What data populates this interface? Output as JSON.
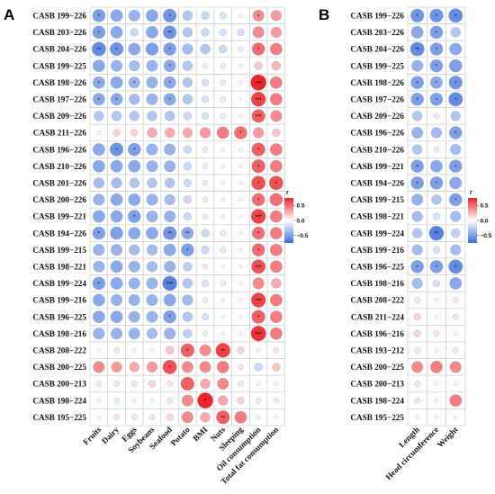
{
  "chart_data": [
    {
      "type": "heatmap",
      "panel": "A",
      "rows": [
        "CASB 199−226",
        "CASB 203−226",
        "CASB 204−226",
        "CASB 199−225",
        "CASB 198−226",
        "CASB 197−226",
        "CASB 209−226",
        "CASB 211−226",
        "CASB 196−226",
        "CASB 210−226",
        "CASB 201−226",
        "CASB 200−226",
        "CASB 199−221",
        "CASB 194−226",
        "CASB 199−215",
        "CASB 198−221",
        "CASB 199−224",
        "CASB 199−216",
        "CASB 196−225",
        "CASB 198−216",
        "CASB 208−222",
        "CASB 200−225",
        "CASB 200−213",
        "CASB 198−224",
        "CASB 195−225"
      ],
      "columns": [
        "Fruits",
        "Dairy",
        "Eggs",
        "Soybeans",
        "Seafood",
        "Potato",
        "BMI",
        "Nuts",
        "Sleeping",
        "Oil consumption",
        "Total fat consumption"
      ],
      "values": [
        [
          -0.5,
          -0.45,
          -0.4,
          -0.45,
          -0.55,
          -0.3,
          -0.2,
          -0.15,
          0.05,
          0.4,
          0.35
        ],
        [
          -0.5,
          -0.45,
          -0.2,
          -0.45,
          -0.55,
          -0.3,
          -0.2,
          -0.15,
          -0.15,
          0.4,
          0.35
        ],
        [
          -0.6,
          -0.55,
          -0.45,
          -0.5,
          -0.5,
          -0.35,
          -0.3,
          -0.2,
          -0.1,
          0.5,
          0.45
        ],
        [
          -0.45,
          -0.4,
          -0.35,
          -0.4,
          -0.45,
          -0.3,
          -0.1,
          -0.1,
          0.05,
          0.2,
          0.25
        ],
        [
          -0.45,
          -0.45,
          -0.4,
          -0.4,
          -0.45,
          -0.3,
          -0.15,
          -0.1,
          0.05,
          0.75,
          0.45
        ],
        [
          -0.45,
          -0.45,
          -0.35,
          -0.4,
          -0.45,
          -0.3,
          -0.15,
          -0.1,
          -0.02,
          0.65,
          0.45
        ],
        [
          -0.3,
          -0.3,
          -0.3,
          -0.3,
          -0.3,
          -0.2,
          -0.15,
          -0.1,
          -0.05,
          0.55,
          0.4
        ],
        [
          0.05,
          0.15,
          0.15,
          0.3,
          0.3,
          0.3,
          0.35,
          0.45,
          0.5,
          0.35,
          0.2
        ],
        [
          -0.45,
          -0.55,
          -0.5,
          -0.4,
          -0.4,
          -0.2,
          -0.1,
          -0.05,
          -0.05,
          0.55,
          0.45
        ],
        [
          -0.45,
          -0.45,
          -0.45,
          -0.4,
          -0.4,
          -0.2,
          -0.1,
          -0.05,
          -0.05,
          0.55,
          0.45
        ],
        [
          -0.35,
          -0.35,
          -0.3,
          -0.3,
          -0.3,
          -0.2,
          -0.1,
          -0.05,
          -0.05,
          0.6,
          0.6
        ],
        [
          -0.4,
          -0.45,
          -0.45,
          -0.4,
          -0.35,
          -0.2,
          -0.1,
          -0.05,
          -0.05,
          0.5,
          0.5
        ],
        [
          -0.45,
          -0.45,
          -0.5,
          -0.4,
          -0.4,
          -0.2,
          -0.1,
          -0.05,
          -0.02,
          0.65,
          0.45
        ],
        [
          -0.5,
          -0.5,
          -0.45,
          -0.45,
          -0.55,
          -0.45,
          -0.2,
          -0.1,
          -0.05,
          0.5,
          0.45
        ],
        [
          -0.4,
          -0.4,
          -0.35,
          -0.35,
          -0.45,
          -0.5,
          -0.2,
          -0.1,
          -0.05,
          0.5,
          0.45
        ],
        [
          -0.4,
          -0.45,
          -0.4,
          -0.35,
          -0.4,
          -0.25,
          -0.1,
          -0.05,
          -0.05,
          0.6,
          0.45
        ],
        [
          -0.5,
          -0.45,
          -0.4,
          -0.4,
          -0.65,
          -0.3,
          -0.15,
          -0.1,
          -0.05,
          0.4,
          0.3
        ],
        [
          -0.45,
          -0.4,
          -0.4,
          -0.4,
          -0.45,
          -0.35,
          -0.1,
          -0.05,
          -0.05,
          0.65,
          0.45
        ],
        [
          -0.45,
          -0.45,
          -0.4,
          -0.4,
          -0.5,
          -0.3,
          -0.15,
          -0.05,
          -0.05,
          0.55,
          0.45
        ],
        [
          -0.4,
          -0.4,
          -0.4,
          -0.35,
          -0.4,
          -0.25,
          -0.1,
          -0.05,
          -0.05,
          0.7,
          0.45
        ],
        [
          -0.05,
          -0.1,
          -0.05,
          0.05,
          0.2,
          0.55,
          0.4,
          0.65,
          0.15,
          -0.05,
          0.1
        ],
        [
          0.4,
          0.35,
          0.3,
          0.35,
          0.6,
          0.4,
          0.4,
          0.45,
          0.1,
          -0.2,
          0.2
        ],
        [
          -0.1,
          0.1,
          0.1,
          0.15,
          0.1,
          0.55,
          0.3,
          0.4,
          0.1,
          -0.05,
          0.05
        ],
        [
          0.05,
          -0.1,
          -0.05,
          0.05,
          0.1,
          0.4,
          0.75,
          0.3,
          0.15,
          -0.1,
          -0.1
        ],
        [
          0.05,
          0.1,
          0.1,
          0.1,
          0.15,
          0.4,
          0.3,
          0.55,
          0.45,
          0.05,
          0.05
        ]
      ],
      "significance": [
        [
          "*",
          "",
          "",
          "",
          "*",
          "",
          "",
          "",
          "",
          "*",
          ""
        ],
        [
          "*",
          "",
          "",
          "",
          "**",
          "",
          "",
          "",
          "",
          "",
          ""
        ],
        [
          "**",
          "*",
          "",
          "",
          "*",
          "",
          "",
          "",
          "",
          "*",
          ""
        ],
        [
          "",
          "",
          "",
          "",
          "*",
          "",
          "",
          "",
          "",
          "",
          ""
        ],
        [
          "*",
          "",
          "*",
          "",
          "*",
          "",
          "",
          "",
          "",
          "***",
          ""
        ],
        [
          "*",
          "*",
          "",
          "",
          "*",
          "",
          "",
          "",
          "",
          "***",
          ""
        ],
        [
          "",
          "",
          "",
          "",
          "",
          "",
          "",
          "",
          "",
          "***",
          ""
        ],
        [
          "",
          "",
          "",
          "",
          "",
          "",
          "",
          "",
          "*",
          "",
          ""
        ],
        [
          "",
          "*",
          "*",
          "",
          "",
          "",
          "",
          "",
          "",
          "*",
          ""
        ],
        [
          "",
          "",
          "",
          "",
          "",
          "",
          "",
          "",
          "",
          "*",
          ""
        ],
        [
          "",
          "",
          "",
          "",
          "",
          "",
          "",
          "",
          "",
          "*",
          "*"
        ],
        [
          "",
          "",
          "",
          "",
          "",
          "",
          "",
          "",
          "",
          "*",
          ""
        ],
        [
          "",
          "",
          "*",
          "",
          "",
          "",
          "",
          "",
          "",
          "***",
          ""
        ],
        [
          "*",
          "",
          "",
          "",
          "**",
          "**",
          "",
          "",
          "",
          "*",
          ""
        ],
        [
          "",
          "",
          "",
          "",
          "",
          "*",
          "",
          "",
          "",
          "*",
          ""
        ],
        [
          "",
          "",
          "",
          "",
          "",
          "",
          "",
          "",
          "",
          "***",
          ""
        ],
        [
          "*",
          "",
          "",
          "",
          "***",
          "",
          "",
          "",
          "",
          "",
          ""
        ],
        [
          "",
          "",
          "",
          "",
          "",
          "",
          "",
          "",
          "",
          "***",
          ""
        ],
        [
          "",
          "",
          "",
          "",
          "*",
          "",
          "",
          "",
          "",
          "*",
          ""
        ],
        [
          "",
          "",
          "",
          "",
          "",
          "",
          "",
          "",
          "",
          "***",
          ""
        ],
        [
          "",
          "",
          "",
          "",
          "",
          "*",
          "",
          "**",
          "",
          "",
          ""
        ],
        [
          "",
          "",
          "",
          "",
          "*",
          "",
          "",
          "",
          "",
          "",
          ""
        ],
        [
          "",
          "",
          "",
          "",
          "",
          "",
          "",
          "",
          "",
          "",
          ""
        ],
        [
          "",
          "",
          "",
          "",
          "",
          "",
          "*",
          "",
          "",
          "",
          ""
        ],
        [
          "",
          "",
          "",
          "",
          "",
          "",
          "",
          "**",
          "",
          "",
          ""
        ]
      ],
      "colorbar": {
        "title": "r",
        "ticks": [
          "0.5",
          "0.0",
          "−0.5"
        ],
        "range": [
          -0.75,
          0.75
        ]
      }
    },
    {
      "type": "heatmap",
      "panel": "B",
      "rows": [
        "CASB 199−226",
        "CASB 203−226",
        "CASB 204−226",
        "CASB 199−225",
        "CASB 198−226",
        "CASB 197−226",
        "CASB 209−226",
        "CASB 196−226",
        "CASB 210−226",
        "CASB 199−221",
        "CASB 194−226",
        "CASB 199−215",
        "CASB 198−221",
        "CASB 199−224",
        "CASB 199−216",
        "CASB 196−225",
        "CASB 198−216",
        "CASB 208−222",
        "CASB 211−224",
        "CASB 196−216",
        "CASB 193−212",
        "CASB 200−225",
        "CASB 200−213",
        "CASB 198−224",
        "CASB 195−225"
      ],
      "columns": [
        "Length",
        "Head circumference",
        "Weight"
      ],
      "values": [
        [
          -0.55,
          -0.55,
          -0.6
        ],
        [
          -0.45,
          -0.5,
          -0.3
        ],
        [
          -0.6,
          -0.5,
          -0.45
        ],
        [
          -0.4,
          -0.5,
          -0.5
        ],
        [
          -0.5,
          -0.45,
          -0.55
        ],
        [
          -0.5,
          -0.5,
          -0.6
        ],
        [
          -0.3,
          -0.1,
          -0.3
        ],
        [
          -0.4,
          -0.35,
          -0.5
        ],
        [
          -0.3,
          -0.1,
          -0.35
        ],
        [
          -0.5,
          -0.45,
          -0.5
        ],
        [
          -0.5,
          -0.5,
          -0.45
        ],
        [
          -0.4,
          -0.3,
          -0.5
        ],
        [
          -0.35,
          -0.15,
          -0.35
        ],
        [
          -0.3,
          -0.65,
          -0.25
        ],
        [
          -0.35,
          -0.15,
          -0.35
        ],
        [
          -0.5,
          -0.5,
          -0.6
        ],
        [
          -0.35,
          -0.15,
          -0.45
        ],
        [
          0.1,
          0.05,
          0.1
        ],
        [
          0.15,
          0.05,
          0.1
        ],
        [
          0.15,
          0.1,
          0.05
        ],
        [
          0.1,
          0.05,
          0.1
        ],
        [
          0.4,
          0.45,
          0.4
        ],
        [
          0.1,
          0.05,
          0.05
        ],
        [
          0.1,
          0.05,
          0.45
        ],
        [
          0.05,
          0.05,
          0.05
        ]
      ],
      "significance": [
        [
          "*",
          "*",
          "*"
        ],
        [
          "",
          "*",
          ""
        ],
        [
          "**",
          "*",
          ""
        ],
        [
          "",
          "*",
          ""
        ],
        [
          "*",
          "*",
          "*"
        ],
        [
          "*",
          "*",
          "*"
        ],
        [
          "",
          "",
          ""
        ],
        [
          "",
          "",
          "*"
        ],
        [
          "",
          "",
          ""
        ],
        [
          "*",
          "",
          "*"
        ],
        [
          "*",
          "*",
          ""
        ],
        [
          "",
          "",
          "*"
        ],
        [
          "",
          "",
          ""
        ],
        [
          "",
          "**",
          ""
        ],
        [
          "",
          "",
          ""
        ],
        [
          "*",
          "*",
          "*"
        ],
        [
          "",
          "",
          ""
        ],
        [
          "",
          "",
          ""
        ],
        [
          "",
          "",
          ""
        ],
        [
          "",
          "",
          ""
        ],
        [
          "",
          "",
          ""
        ],
        [
          "",
          "",
          ""
        ],
        [
          "",
          "",
          ""
        ],
        [
          "",
          "",
          ""
        ],
        [
          "",
          "",
          ""
        ]
      ],
      "colorbar": {
        "title": "r",
        "ticks": [
          "0.5",
          "0.0",
          "−0.5"
        ],
        "range": [
          -0.75,
          0.75
        ]
      }
    }
  ],
  "colors": {
    "negative": "#3d6fd8",
    "neutral": "#ffffff",
    "positive": "#e8262b",
    "grid": "#c8c8c8"
  }
}
